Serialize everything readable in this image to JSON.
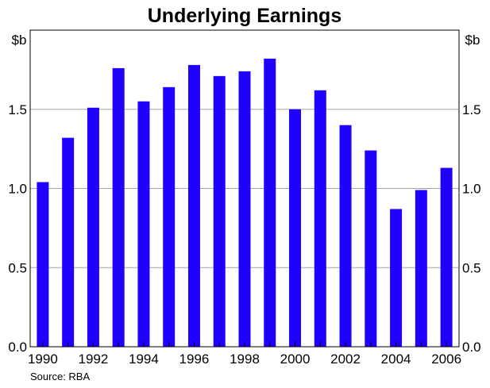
{
  "chart_data": {
    "type": "bar",
    "title": "Underlying Earnings",
    "unit_left": "$b",
    "unit_right": "$b",
    "source": "Source: RBA",
    "categories": [
      "1990",
      "1991",
      "1992",
      "1993",
      "1994",
      "1995",
      "1996",
      "1997",
      "1998",
      "1999",
      "2000",
      "2001",
      "2002",
      "2003",
      "2004",
      "2005",
      "2006"
    ],
    "x_tick_labels": [
      "1990",
      "1992",
      "1994",
      "1996",
      "1998",
      "2000",
      "2002",
      "2004",
      "2006"
    ],
    "values": [
      1.04,
      1.32,
      1.51,
      1.76,
      1.55,
      1.64,
      1.78,
      1.71,
      1.74,
      1.82,
      1.5,
      1.62,
      1.4,
      1.24,
      0.87,
      0.99,
      1.13
    ],
    "ylim": [
      0,
      2.0
    ],
    "yticks": [
      "0.0",
      "0.5",
      "1.0",
      "1.5"
    ],
    "bar_color": "#1f00ff",
    "grid": true,
    "xlabel": "",
    "ylabel": ""
  }
}
